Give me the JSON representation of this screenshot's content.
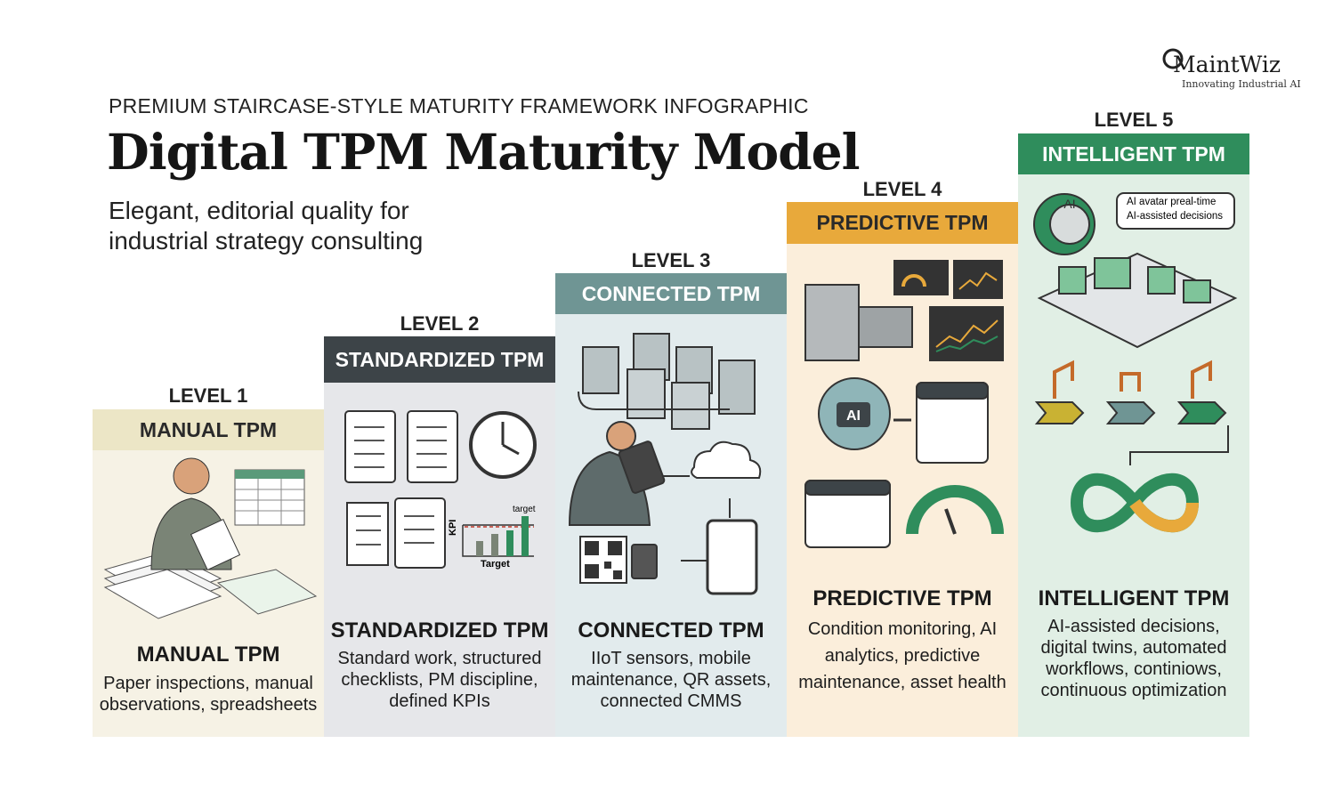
{
  "logo": {
    "name": "MaintWiz",
    "tagline": "Innovating Industrial AI"
  },
  "header": {
    "eyebrow": "PREMIUM STAIRCASE-STYLE MATURITY FRAMEWORK INFOGRAPHIC",
    "title": "Digital TPM Maturity Model",
    "subtitle": "Elegant, editorial quality for industrial strategy consulting"
  },
  "levels": [
    {
      "level": "LEVEL 1",
      "banner": "MANUAL TPM",
      "heading": "MANUAL TPM",
      "description": "Paper inspections, manual observations, spreadsheets"
    },
    {
      "level": "LEVEL 2",
      "banner": "STANDARDIZED TPM",
      "heading": "STANDARDIZED TPM",
      "description": "Standard work, structured checklists, PM discipline, defined KPIs",
      "illustration_labels": [
        "target",
        "KPI",
        "Target"
      ]
    },
    {
      "level": "LEVEL 3",
      "banner": "CONNECTED TPM",
      "heading": "CONNECTED TPM",
      "description": "IIoT sensors, mobile maintenance, QR assets, connected CMMS"
    },
    {
      "level": "LEVEL 4",
      "banner": "PREDICTIVE TPM",
      "heading": "PREDICTIVE TPM",
      "description": "Condition monitoring, AI analytics, predictive maintenance, asset health",
      "illustration_labels": [
        "AI"
      ]
    },
    {
      "level": "LEVEL 5",
      "banner": "INTELLIGENT TPM",
      "heading": "INTELLIGENT TPM",
      "description": "AI-assisted decisions, digital twins, automated workflows, continiows, continuous optimization",
      "illustration_labels": [
        "AI",
        "AI avatar preal-time",
        "AI-assisted decisions"
      ]
    }
  ]
}
